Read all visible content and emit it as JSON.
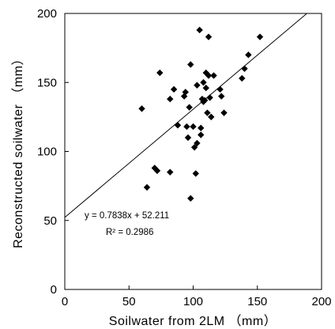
{
  "chart_data": {
    "type": "scatter",
    "xlabel": "Soilwater from 2LM （mm）",
    "ylabel": "Reconstructed soilwater （mm）",
    "xlim": [
      0,
      200
    ],
    "ylim": [
      0,
      200
    ],
    "xticks": [
      "0",
      "50",
      "100",
      "150",
      "200"
    ],
    "yticks": [
      "0",
      "50",
      "100",
      "150",
      "200"
    ],
    "grid": false,
    "series": [
      {
        "marker": "diamond",
        "color": "#000000",
        "points": [
          [
            60,
            131
          ],
          [
            64,
            74
          ],
          [
            70,
            88
          ],
          [
            72,
            86
          ],
          [
            74,
            157
          ],
          [
            82,
            138
          ],
          [
            82,
            85
          ],
          [
            85,
            145
          ],
          [
            88,
            119
          ],
          [
            93,
            140
          ],
          [
            94,
            143
          ],
          [
            95,
            118
          ],
          [
            96,
            110
          ],
          [
            97,
            132
          ],
          [
            98,
            66
          ],
          [
            98,
            163
          ],
          [
            100,
            118
          ],
          [
            101,
            103
          ],
          [
            102,
            84
          ],
          [
            103,
            148
          ],
          [
            103,
            106
          ],
          [
            105,
            188
          ],
          [
            106,
            112
          ],
          [
            106,
            117
          ],
          [
            107,
            138
          ],
          [
            108,
            136
          ],
          [
            108,
            150
          ],
          [
            109,
            137
          ],
          [
            110,
            157
          ],
          [
            110,
            146
          ],
          [
            111,
            128
          ],
          [
            112,
            155
          ],
          [
            112,
            183
          ],
          [
            113,
            139
          ],
          [
            114,
            125
          ],
          [
            116,
            155
          ],
          [
            121,
            145
          ],
          [
            122,
            140
          ],
          [
            124,
            128
          ],
          [
            138,
            153
          ],
          [
            140,
            160
          ],
          [
            143,
            170
          ],
          [
            152,
            183
          ]
        ]
      }
    ],
    "trendline": {
      "slope": 0.7838,
      "intercept": 52.211,
      "x_range": [
        0,
        200
      ],
      "color": "#000000"
    },
    "annotations": {
      "equation": "y = 0.7838x + 52.211",
      "r_squared": "R² = 0.2986"
    }
  }
}
